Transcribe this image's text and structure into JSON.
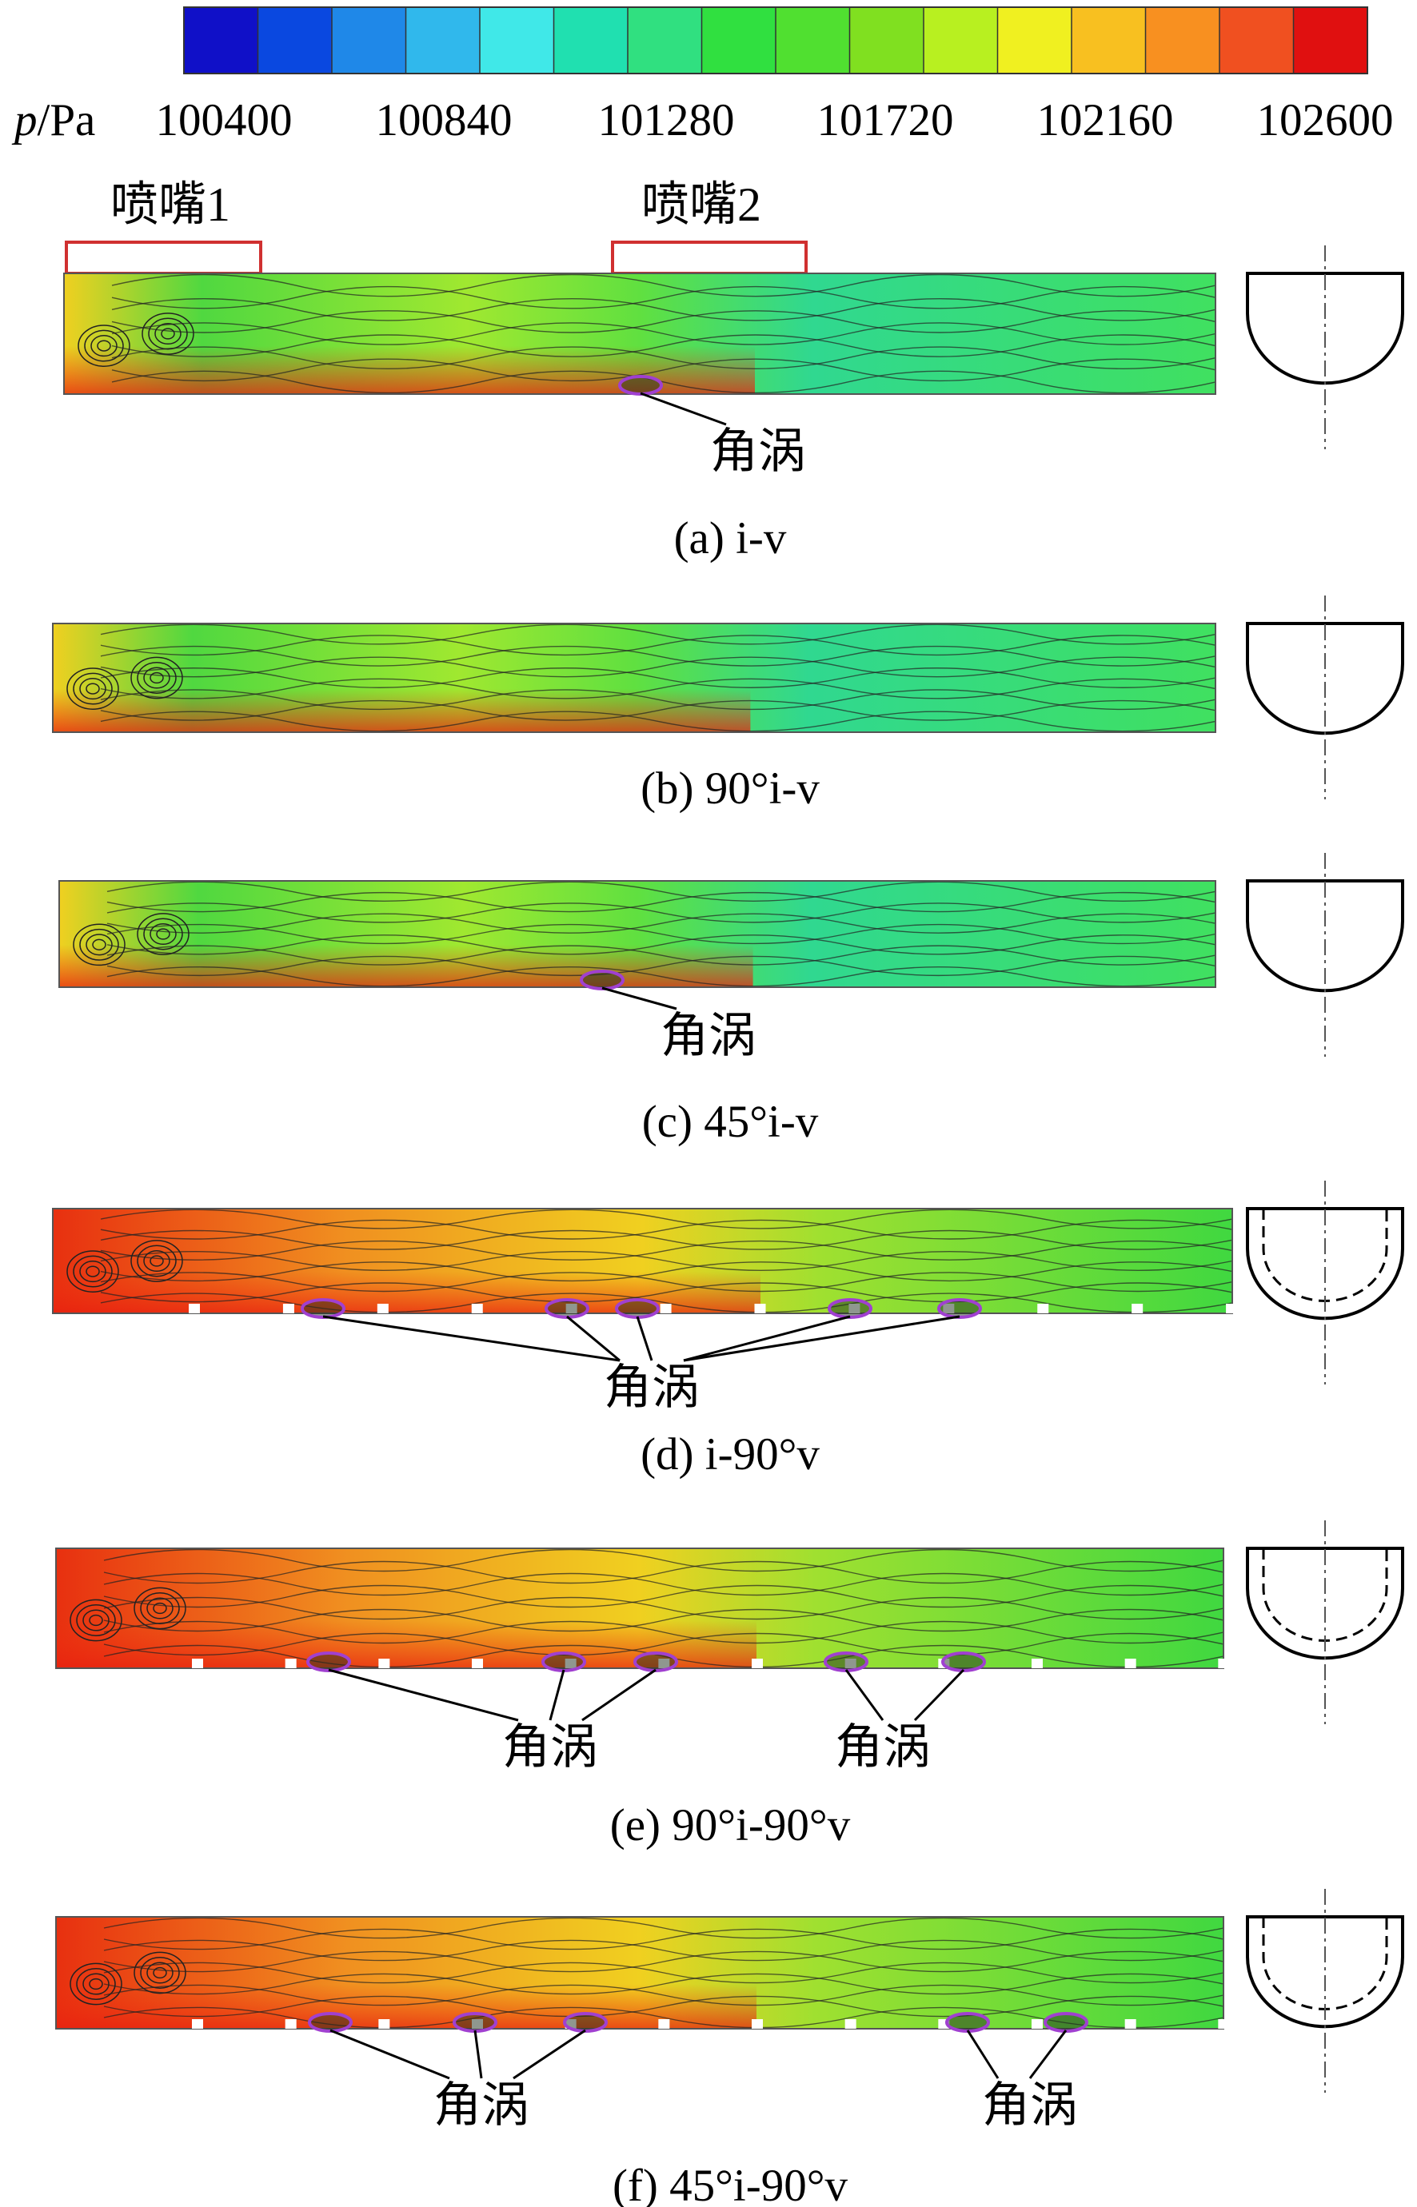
{
  "colorbar": {
    "symbol": "p",
    "unit": "/Pa",
    "ticks": [
      100400,
      100840,
      101280,
      101720,
      102160,
      102600
    ]
  },
  "nozzles": [
    "喷嘴1",
    "喷嘴2"
  ],
  "panels": [
    {
      "caption": "(a) i-v",
      "annotations": [
        "角涡"
      ]
    },
    {
      "caption": "(b) 90°i-v",
      "annotations": []
    },
    {
      "caption": "(c) 45°i-v",
      "annotations": [
        "角涡"
      ]
    },
    {
      "caption": "(d) i-90°v",
      "annotations": [
        "角涡"
      ]
    },
    {
      "caption": "(e) 90°i-90°v",
      "annotations": [
        "角涡",
        "角涡"
      ]
    },
    {
      "caption": "(f) 45°i-90°v",
      "annotations": [
        "角涡",
        "角涡"
      ]
    }
  ]
}
